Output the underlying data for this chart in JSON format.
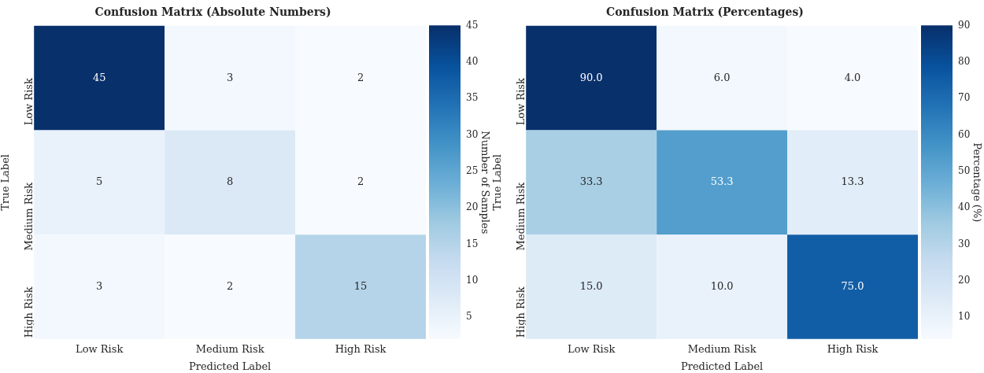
{
  "chart_data": [
    {
      "type": "heatmap",
      "title": "Confusion Matrix (Absolute Numbers)",
      "xlabel": "Predicted Label",
      "ylabel": "True Label",
      "clabel": "Number of Samples",
      "categories": [
        "Low Risk",
        "Medium Risk",
        "High Risk"
      ],
      "y_categories": [
        "Low Risk",
        "Medium Risk",
        "High Risk"
      ],
      "cells": [
        [
          45,
          3,
          2
        ],
        [
          5,
          8,
          2
        ],
        [
          3,
          2,
          15
        ]
      ],
      "data_labels": true,
      "clim": [
        2,
        45
      ],
      "cticks": [
        5,
        10,
        15,
        20,
        25,
        30,
        35,
        40,
        45
      ]
    },
    {
      "type": "heatmap",
      "title": "Confusion Matrix (Percentages)",
      "xlabel": "Predicted Label",
      "ylabel": "True Label",
      "clabel": "Percentage (%)",
      "categories": [
        "Low Risk",
        "Medium Risk",
        "High Risk"
      ],
      "y_categories": [
        "Low Risk",
        "Medium Risk",
        "High Risk"
      ],
      "cells": [
        [
          90.0,
          6.0,
          4.0
        ],
        [
          33.3,
          53.3,
          13.3
        ],
        [
          15.0,
          10.0,
          75.0
        ]
      ],
      "cell_labels": [
        [
          "90.0",
          "6.0",
          "4.0"
        ],
        [
          "33.3",
          "53.3",
          "13.3"
        ],
        [
          "15.0",
          "10.0",
          "75.0"
        ]
      ],
      "clim": [
        4,
        90
      ],
      "cticks": [
        10,
        20,
        30,
        40,
        50,
        60,
        70,
        80,
        90
      ]
    }
  ]
}
